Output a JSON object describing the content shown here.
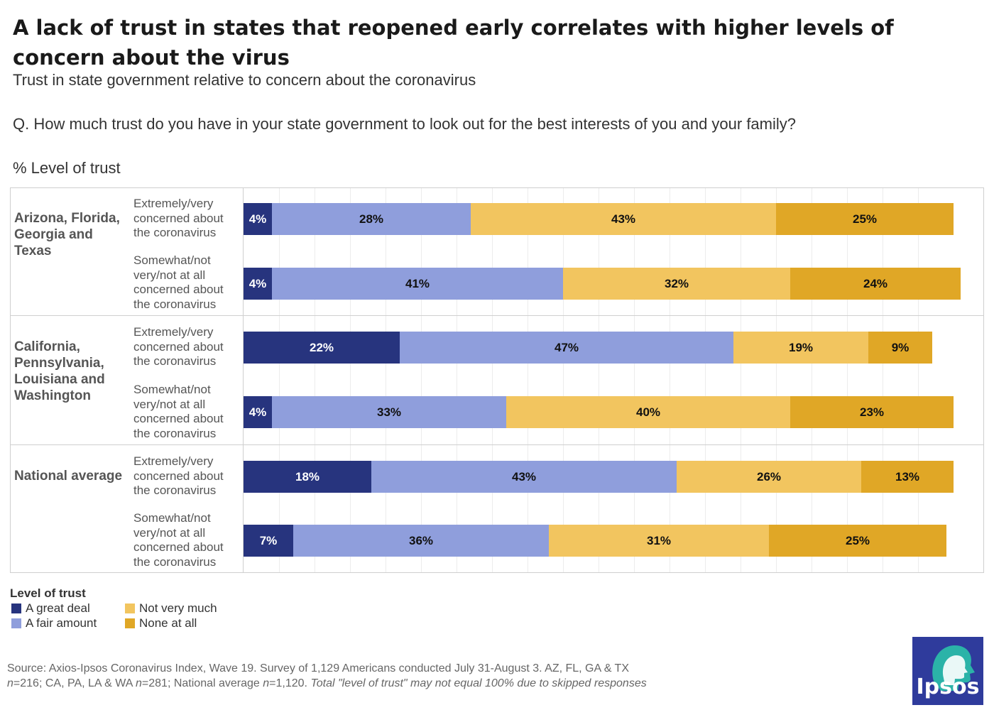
{
  "header": {
    "title": "A lack of trust in states that reopened early correlates with higher levels of concern about the virus",
    "subtitle": "Trust in state government relative to concern about the coronavirus",
    "question": "Q. How much trust do you have in your state government to look out for the best interests of you and your family?",
    "unit": "% Level of trust"
  },
  "chart_data": {
    "type": "bar",
    "orientation": "horizontal",
    "stacked": true,
    "xlim": [
      0,
      100
    ],
    "grid": true,
    "legend_position": "bottom-left",
    "series_names": [
      "A great deal",
      "A fair amount",
      "Not very much",
      "None at all"
    ],
    "series_colors": [
      "#27347e",
      "#8f9edc",
      "#f2c55f",
      "#e0a726"
    ],
    "series_label_colors": [
      "#ffffff",
      "#111111",
      "#111111",
      "#111111"
    ],
    "groups": [
      {
        "name": "Arizona, Florida, Georgia and Texas",
        "rows": [
          {
            "label": "Extremely/very concerned about the coronavirus",
            "values": [
              4,
              28,
              43,
              25
            ],
            "labels": [
              "4%",
              "28%",
              "43%",
              "25%"
            ]
          },
          {
            "label": "Somewhat/not very/not at all concerned about the coronavirus",
            "values": [
              4,
              41,
              32,
              24
            ],
            "labels": [
              "4%",
              "41%",
              "32%",
              "24%"
            ]
          }
        ]
      },
      {
        "name": "California, Pennsylvania, Louisiana and Washington",
        "rows": [
          {
            "label": "Extremely/very concerned about the coronavirus",
            "values": [
              22,
              47,
              19,
              9
            ],
            "labels": [
              "22%",
              "47%",
              "19%",
              "9%"
            ]
          },
          {
            "label": "Somewhat/not very/not at all concerned about the coronavirus",
            "values": [
              4,
              33,
              40,
              23
            ],
            "labels": [
              "4%",
              "33%",
              "40%",
              "23%"
            ]
          }
        ]
      },
      {
        "name": "National average",
        "rows": [
          {
            "label": "Extremely/very concerned about the coronavirus",
            "values": [
              18,
              43,
              26,
              13
            ],
            "labels": [
              "18%",
              "43%",
              "26%",
              "13%"
            ]
          },
          {
            "label": "Somewhat/not very/not at all concerned about the coronavirus",
            "values": [
              7,
              36,
              31,
              25
            ],
            "labels": [
              "7%",
              "36%",
              "31%",
              "25%"
            ]
          }
        ]
      }
    ]
  },
  "legend": {
    "title": "Level of trust",
    "items": [
      "A great deal",
      "A fair amount",
      "Not very much",
      "None at all"
    ]
  },
  "footer": {
    "source_line1": "Source: Axios-Ipsos Coronavirus Index, Wave 19. Survey of 1,129 Americans conducted July 31-August 3. AZ, FL, GA & TX",
    "n1": "n",
    "n1_value": "=216; CA, PA, LA & WA ",
    "n2": "n",
    "n2_value": "=281; National average ",
    "n3": "n",
    "n3_value": "=1,120. ",
    "note": "Total \"level of trust\" may not equal 100% due to skipped responses"
  },
  "logo": {
    "text": "Ipsos"
  }
}
